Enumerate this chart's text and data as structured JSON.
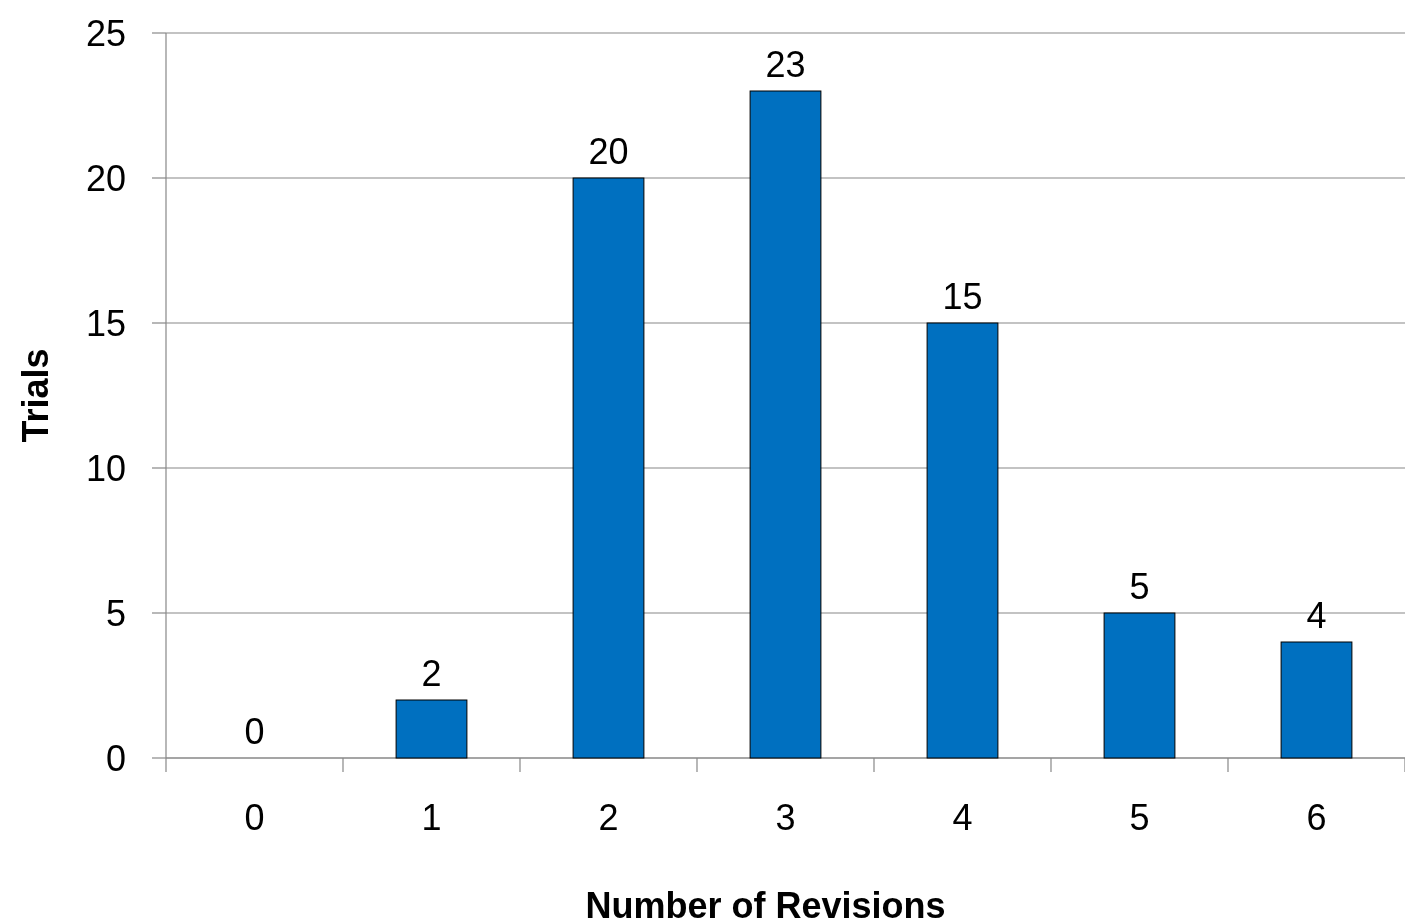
{
  "chart_data": {
    "type": "bar",
    "xlabel": "Number of Revisions",
    "ylabel": "Trials",
    "categories": [
      "0",
      "1",
      "2",
      "3",
      "4",
      "5",
      "6"
    ],
    "values": [
      0,
      2,
      20,
      23,
      15,
      5,
      4
    ],
    "color": "#0070c0",
    "ylim": [
      0,
      25
    ],
    "yticks": [
      0,
      5,
      10,
      15,
      20,
      25
    ],
    "grid": "y",
    "data_labels": true
  }
}
